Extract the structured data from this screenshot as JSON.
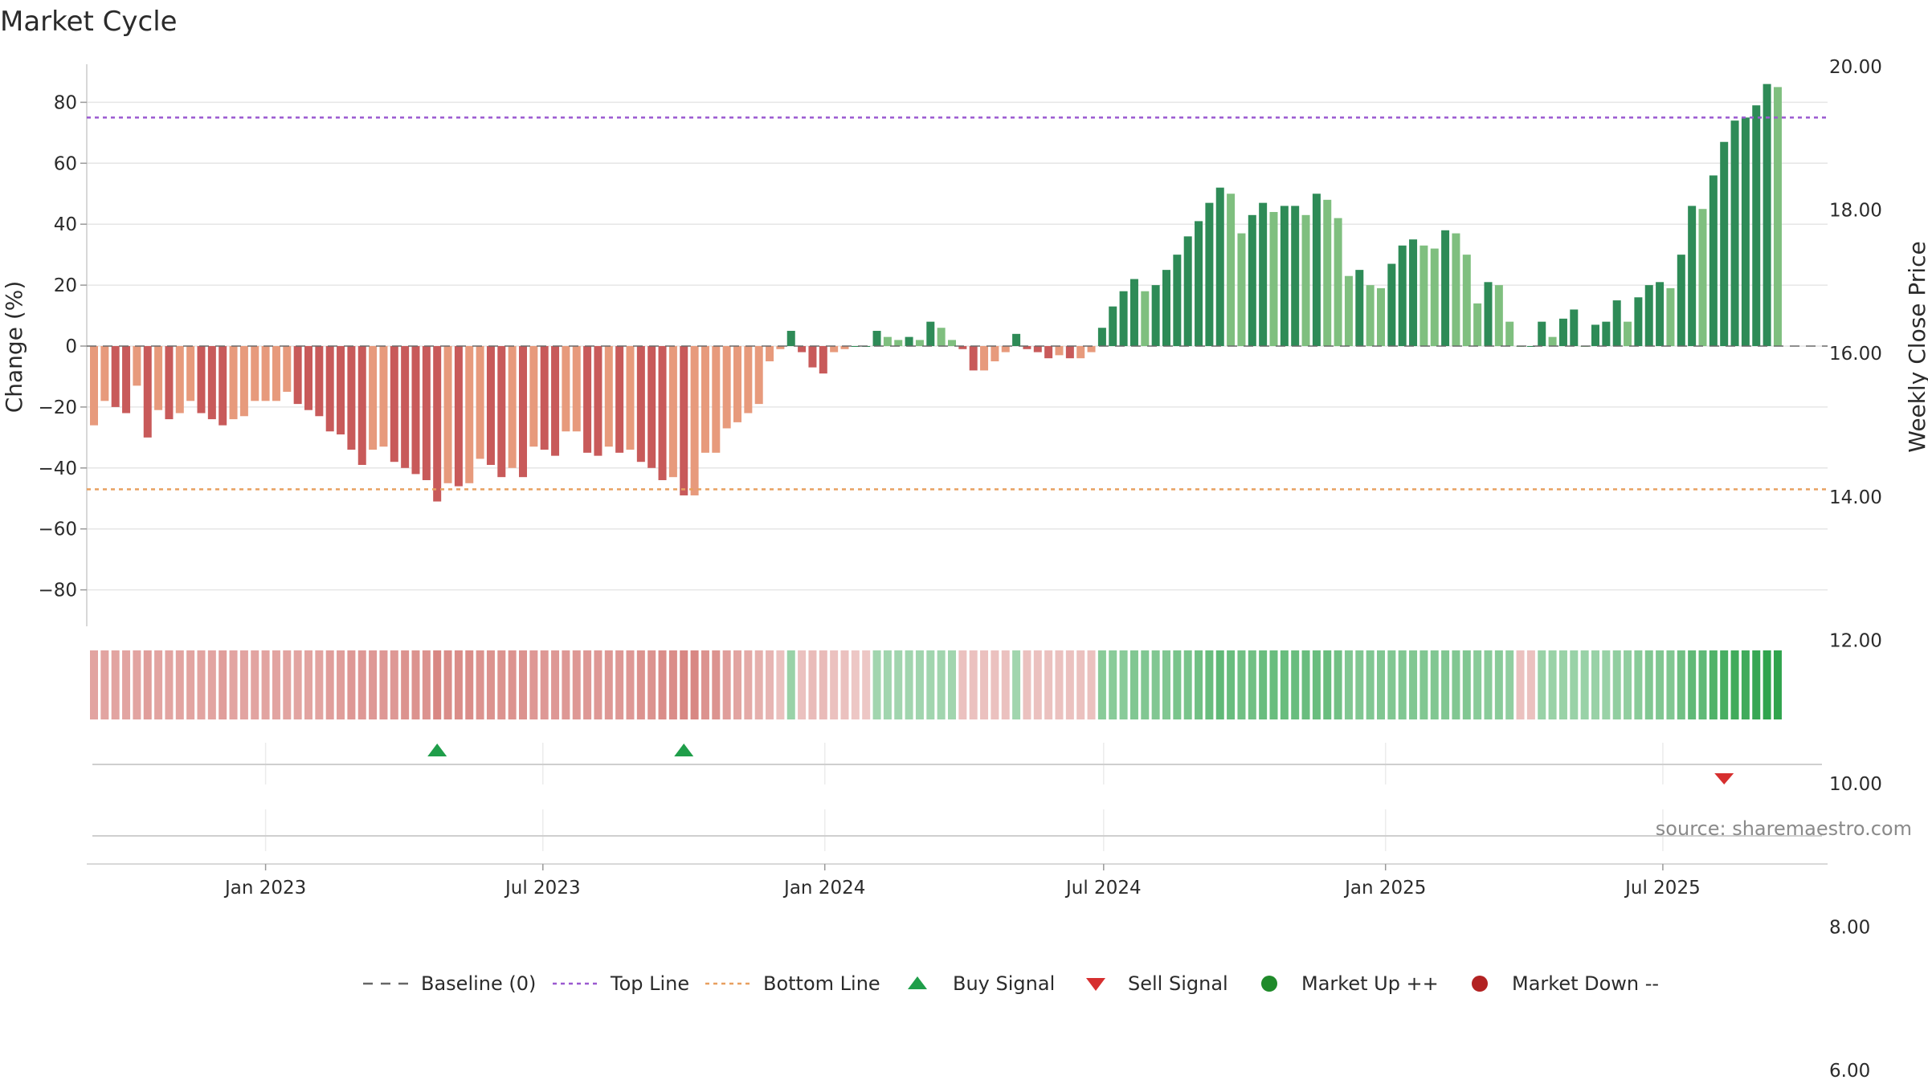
{
  "chart_data": {
    "type": "bar",
    "title": "Market Cycle",
    "ylabel_left": "Change (%)",
    "ylabel_right": "Weekly Close Price",
    "ylim_left": [
      -92,
      92
    ],
    "ylim_right": [
      4.5,
      20.0
    ],
    "left_ticks": [
      "80",
      "60",
      "40",
      "20",
      "0",
      "−20",
      "−40",
      "−60",
      "−80"
    ],
    "left_tick_values": [
      80,
      60,
      40,
      20,
      0,
      -20,
      -40,
      -60,
      -80
    ],
    "right_ticks": [
      "20.00",
      "18.00",
      "16.00",
      "14.00",
      "12.00",
      "10.00",
      "8.00",
      "6.00"
    ],
    "right_tick_values": [
      20,
      18,
      16,
      14,
      12,
      10,
      8,
      6
    ],
    "x_ticks": [
      "Jan 2023",
      "Jul 2023",
      "Jan 2024",
      "Jul 2024",
      "Jan 2025",
      "Jul 2025"
    ],
    "x_tick_dates": [
      "2023-01-01",
      "2023-07-01",
      "2024-01-01",
      "2024-07-01",
      "2025-01-01",
      "2025-07-01"
    ],
    "first_week": "2022-09-11",
    "top_line": 75,
    "bottom_line": -47,
    "baseline": 0,
    "values": [
      -26,
      -18,
      -20,
      -22,
      -13,
      -30,
      -21,
      -24,
      -22,
      -18,
      -22,
      -24,
      -26,
      -24,
      -23,
      -18,
      -18,
      -18,
      -15,
      -19,
      -21,
      -23,
      -28,
      -29,
      -34,
      -39,
      -34,
      -33,
      -38,
      -40,
      -42,
      -44,
      -51,
      -45,
      -46,
      -45,
      -37,
      -39,
      -43,
      -40,
      -43,
      -33,
      -34,
      -36,
      -28,
      -28,
      -35,
      -36,
      -33,
      -35,
      -34,
      -38,
      -40,
      -44,
      -43,
      -49,
      -49,
      -35,
      -35,
      -27,
      -25,
      -22,
      -19,
      -5,
      -1,
      5,
      -2,
      -7,
      -9,
      -2,
      -1,
      0,
      0,
      5,
      3,
      2,
      3,
      2,
      8,
      6,
      2,
      -1,
      -8,
      -8,
      -5,
      -2,
      4,
      -1,
      -2,
      -4,
      -3,
      -4,
      -4,
      -2,
      6,
      13,
      18,
      22,
      18,
      20,
      25,
      30,
      36,
      41,
      47,
      52,
      50,
      37,
      43,
      47,
      44,
      46,
      46,
      43,
      50,
      48,
      42,
      23,
      25,
      20,
      19,
      27,
      33,
      35,
      33,
      32,
      38,
      37,
      30,
      14,
      21,
      20,
      8,
      0,
      0,
      8,
      3,
      9,
      12,
      0,
      7,
      8,
      15,
      8,
      16,
      20,
      21,
      19,
      30,
      46,
      45,
      56,
      67,
      74,
      75,
      79,
      86,
      85
    ],
    "heat": [
      0.45,
      0.45,
      0.45,
      0.45,
      0.45,
      0.5,
      0.45,
      0.45,
      0.45,
      0.45,
      0.45,
      0.45,
      0.5,
      0.45,
      0.45,
      0.45,
      0.45,
      0.45,
      0.45,
      0.45,
      0.45,
      0.45,
      0.5,
      0.5,
      0.55,
      0.55,
      0.55,
      0.55,
      0.55,
      0.6,
      0.6,
      0.6,
      0.7,
      0.65,
      0.65,
      0.65,
      0.6,
      0.6,
      0.6,
      0.6,
      0.6,
      0.55,
      0.55,
      0.55,
      0.55,
      0.55,
      0.55,
      0.55,
      0.55,
      0.55,
      0.55,
      0.6,
      0.6,
      0.65,
      0.65,
      0.7,
      0.7,
      0.6,
      0.6,
      0.5,
      0.45,
      0.4,
      0.35,
      0.3,
      0.2,
      -0.3,
      0.2,
      0.25,
      0.25,
      0.2,
      0.2,
      0.15,
      0.15,
      -0.25,
      -0.25,
      -0.25,
      -0.25,
      -0.25,
      -0.25,
      -0.25,
      -0.25,
      0.2,
      0.2,
      0.2,
      0.2,
      0.2,
      -0.25,
      0.2,
      0.2,
      0.2,
      0.2,
      0.2,
      0.2,
      0.2,
      -0.4,
      -0.4,
      -0.4,
      -0.45,
      -0.45,
      -0.45,
      -0.45,
      -0.5,
      -0.5,
      -0.55,
      -0.6,
      -0.65,
      -0.6,
      -0.55,
      -0.55,
      -0.6,
      -0.6,
      -0.6,
      -0.6,
      -0.6,
      -0.6,
      -0.6,
      -0.55,
      -0.45,
      -0.45,
      -0.45,
      -0.45,
      -0.45,
      -0.45,
      -0.45,
      -0.45,
      -0.45,
      -0.45,
      -0.45,
      -0.45,
      -0.4,
      -0.4,
      -0.4,
      -0.35,
      0.2,
      0.2,
      -0.3,
      -0.3,
      -0.3,
      -0.3,
      -0.3,
      -0.3,
      -0.3,
      -0.35,
      -0.35,
      -0.4,
      -0.45,
      -0.45,
      -0.45,
      -0.55,
      -0.65,
      -0.65,
      -0.75,
      -0.8,
      -0.85,
      -0.85,
      -0.9,
      -0.95,
      -0.95
    ],
    "buy_signals": [
      32,
      55
    ],
    "sell_signals": [
      152
    ],
    "legend": [
      "Baseline (0)",
      "Top Line",
      "Bottom Line",
      "Buy Signal",
      "Sell Signal",
      "Market Up ++",
      "Market Down --"
    ],
    "legend_placement": "bottom-center",
    "grid": true
  },
  "source_text": "source: sharemaestro.com",
  "colors": {
    "red_dark": "#c85a5a",
    "red_light": "#e79a7c",
    "green_dark": "#2e8b57",
    "green_light": "#7fbf7f",
    "top_line": "#9b59d0",
    "bottom_line": "#e8a060",
    "buy": "#1f9e4a",
    "sell": "#d62f2f",
    "market_up": "#1f8a2a",
    "market_down": "#b22222"
  }
}
